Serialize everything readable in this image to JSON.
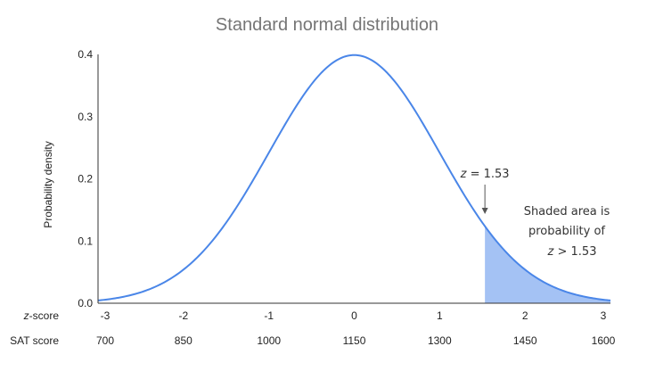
{
  "chart_data": {
    "type": "area",
    "title": "Standard normal distribution",
    "ylabel": "Probability density",
    "ylim": [
      0,
      0.4
    ],
    "xlim": [
      -3,
      3
    ],
    "y_ticks": [
      0.0,
      0.1,
      0.2,
      0.3,
      0.4
    ],
    "y_tick_labels": [
      "0.0",
      "0.1",
      "0.2",
      "0.3",
      "0.4"
    ],
    "x_axis_rows": [
      {
        "label_italic": "z",
        "label_rest": "-score",
        "ticks": [
          -3,
          -2,
          -1,
          0,
          1,
          2,
          3
        ],
        "tick_labels": [
          "-3",
          "-2",
          "-1",
          "0",
          "1",
          "2",
          "3"
        ]
      },
      {
        "label_italic": "",
        "label_rest": "SAT score",
        "ticks": [
          -3,
          -2,
          -1,
          0,
          1,
          2,
          3
        ],
        "tick_labels": [
          "700",
          "850",
          "1000",
          "1150",
          "1300",
          "1450",
          "1600"
        ]
      }
    ],
    "series": [
      {
        "distribution": "standard normal",
        "mean": 0,
        "sd": 1,
        "x": [
          -3,
          -2.5,
          -2,
          -1.5,
          -1,
          -0.5,
          0,
          0.5,
          1,
          1.5,
          2,
          2.5,
          3
        ],
        "y": [
          0.0044,
          0.0175,
          0.054,
          0.1295,
          0.242,
          0.3521,
          0.3989,
          0.3521,
          0.242,
          0.1295,
          0.054,
          0.0175,
          0.0044
        ]
      }
    ],
    "shaded_region": {
      "from": 1.53,
      "to": 3
    },
    "annotations": {
      "z_marker": {
        "x": 1.53,
        "italic": "z",
        "rest": " = 1.53"
      },
      "shade_note": {
        "lines": [
          "Shaded area is",
          "probability of"
        ],
        "last_italic": "z",
        "last_rest": " > 1.53"
      }
    },
    "grid": false,
    "legend": "none"
  },
  "colors": {
    "line": "#4a86e8",
    "fill": "#a4c2f4",
    "axis": "#333333",
    "title": "#757575",
    "arrow": "#555555"
  }
}
